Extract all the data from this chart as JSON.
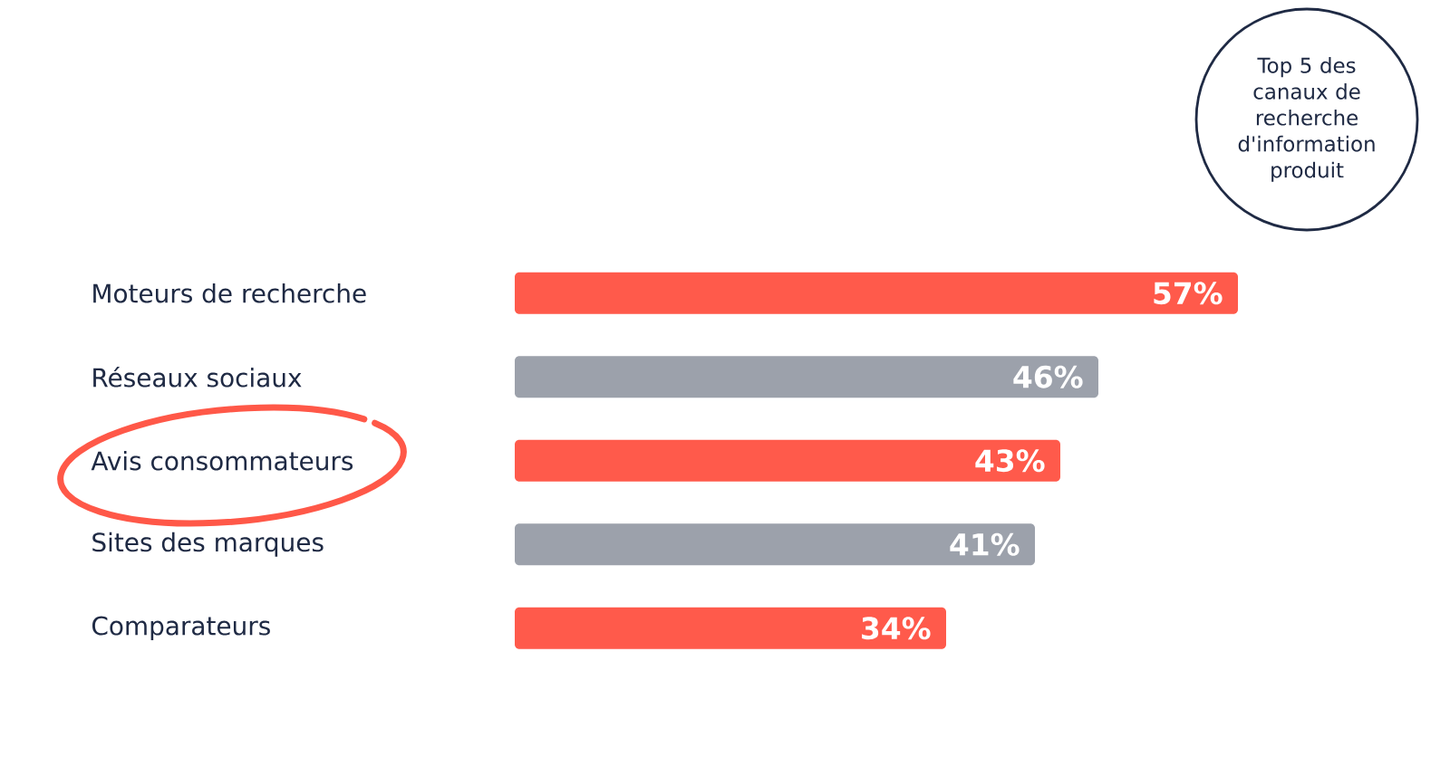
{
  "chart_data": {
    "type": "bar",
    "orientation": "horizontal",
    "title": "Top 5 des canaux de recherche d'information produit",
    "categories": [
      "Moteurs de recherche",
      "Réseaux sociaux",
      "Avis consommateurs",
      "Sites des marques",
      "Comparateurs"
    ],
    "values": [
      57,
      46,
      43,
      41,
      34
    ],
    "colors": [
      "#ff5a4b",
      "#9ca1ab",
      "#ff5a4b",
      "#9ca1ab",
      "#ff5a4b"
    ],
    "value_labels": [
      "57%",
      "46%",
      "43%",
      "41%",
      "34%"
    ]
  }
}
